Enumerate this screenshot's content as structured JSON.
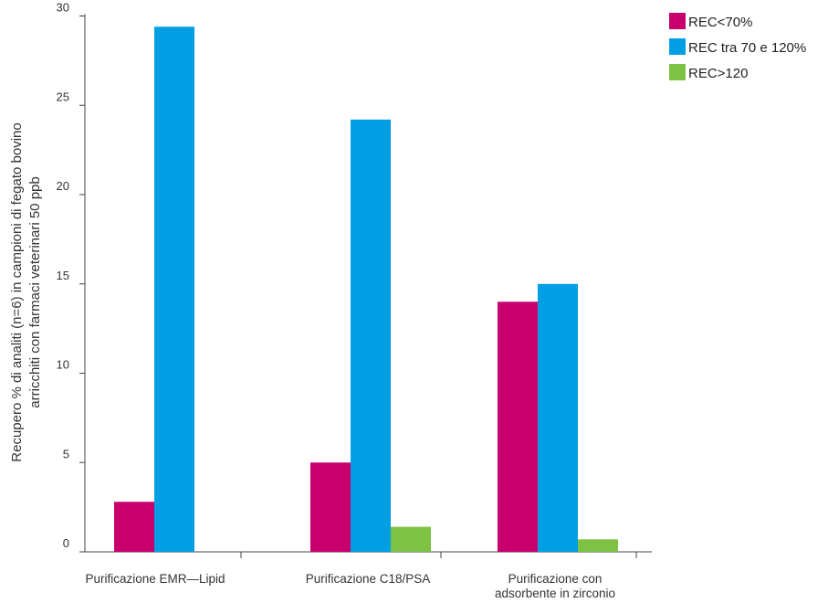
{
  "chart_data": {
    "type": "bar",
    "categories": [
      [
        "Purificazione EMR—Lipid"
      ],
      [
        "Purificazione C18/PSA"
      ],
      [
        "Purificazione con",
        "adsorbente in zirconio"
      ]
    ],
    "series": [
      {
        "name": "REC<70%",
        "color": "#c8006e",
        "values": [
          2.8,
          5,
          14
        ]
      },
      {
        "name": "REC tra 70 e 120%",
        "color": "#009fe3",
        "values": [
          29.4,
          24.2,
          15
        ]
      },
      {
        "name": "REC>120",
        "color": "#7dc242",
        "values": [
          0,
          1.4,
          0.7
        ]
      }
    ],
    "ylabel": [
      "Recupero % di analiti (n=6) in campioni di fegato bovino",
      "arricchiti con farmaci veterinari 50 ppb"
    ],
    "yticks": [
      0,
      5,
      10,
      15,
      20,
      25,
      30
    ],
    "ylim": [
      0,
      30
    ],
    "legend_position": "top-right",
    "grid": false
  }
}
